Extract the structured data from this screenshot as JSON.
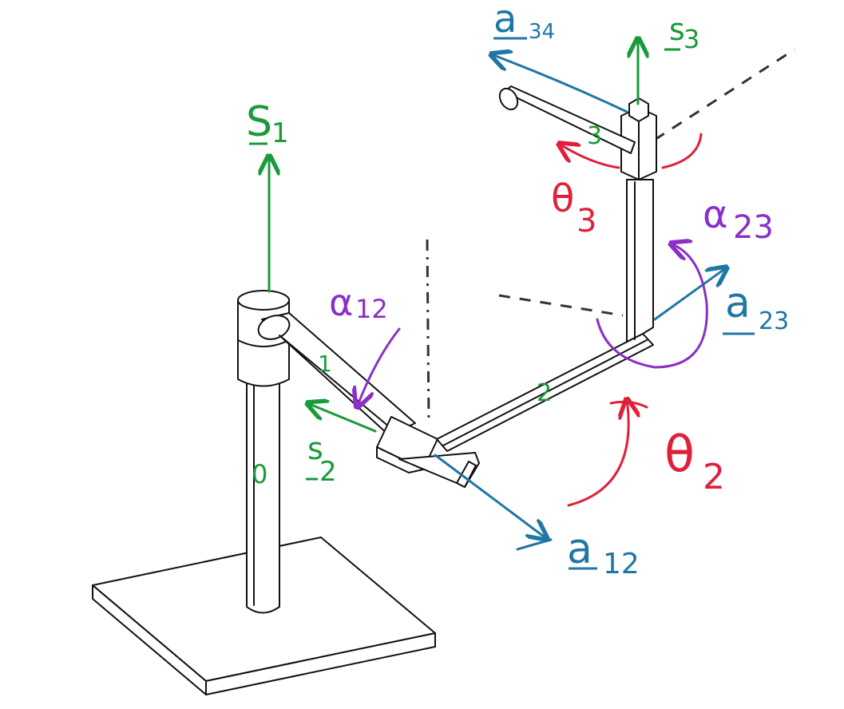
{
  "colors": {
    "green": "#1a9a3a",
    "blue": "#1f77a6",
    "red": "#e0203a",
    "purple": "#8a2fc8",
    "black": "#111111"
  },
  "labels": {
    "s1": "S",
    "s1_sub": "1",
    "s2": "s",
    "s2_sub": "2",
    "s3": "s",
    "s3_sub": "3",
    "a12": "a",
    "a12_sub": "12",
    "a23": "a",
    "a23_sub": "23",
    "a34": "a",
    "a34_sub": "34",
    "alpha12": "α",
    "alpha12_sub": "12",
    "alpha23": "α",
    "alpha23_sub": "23",
    "theta2": "θ",
    "theta2_sub": "2",
    "theta3": "θ",
    "theta3_sub": "3",
    "link0": "0",
    "link1": "1",
    "link2": "2",
    "link3": "3"
  }
}
